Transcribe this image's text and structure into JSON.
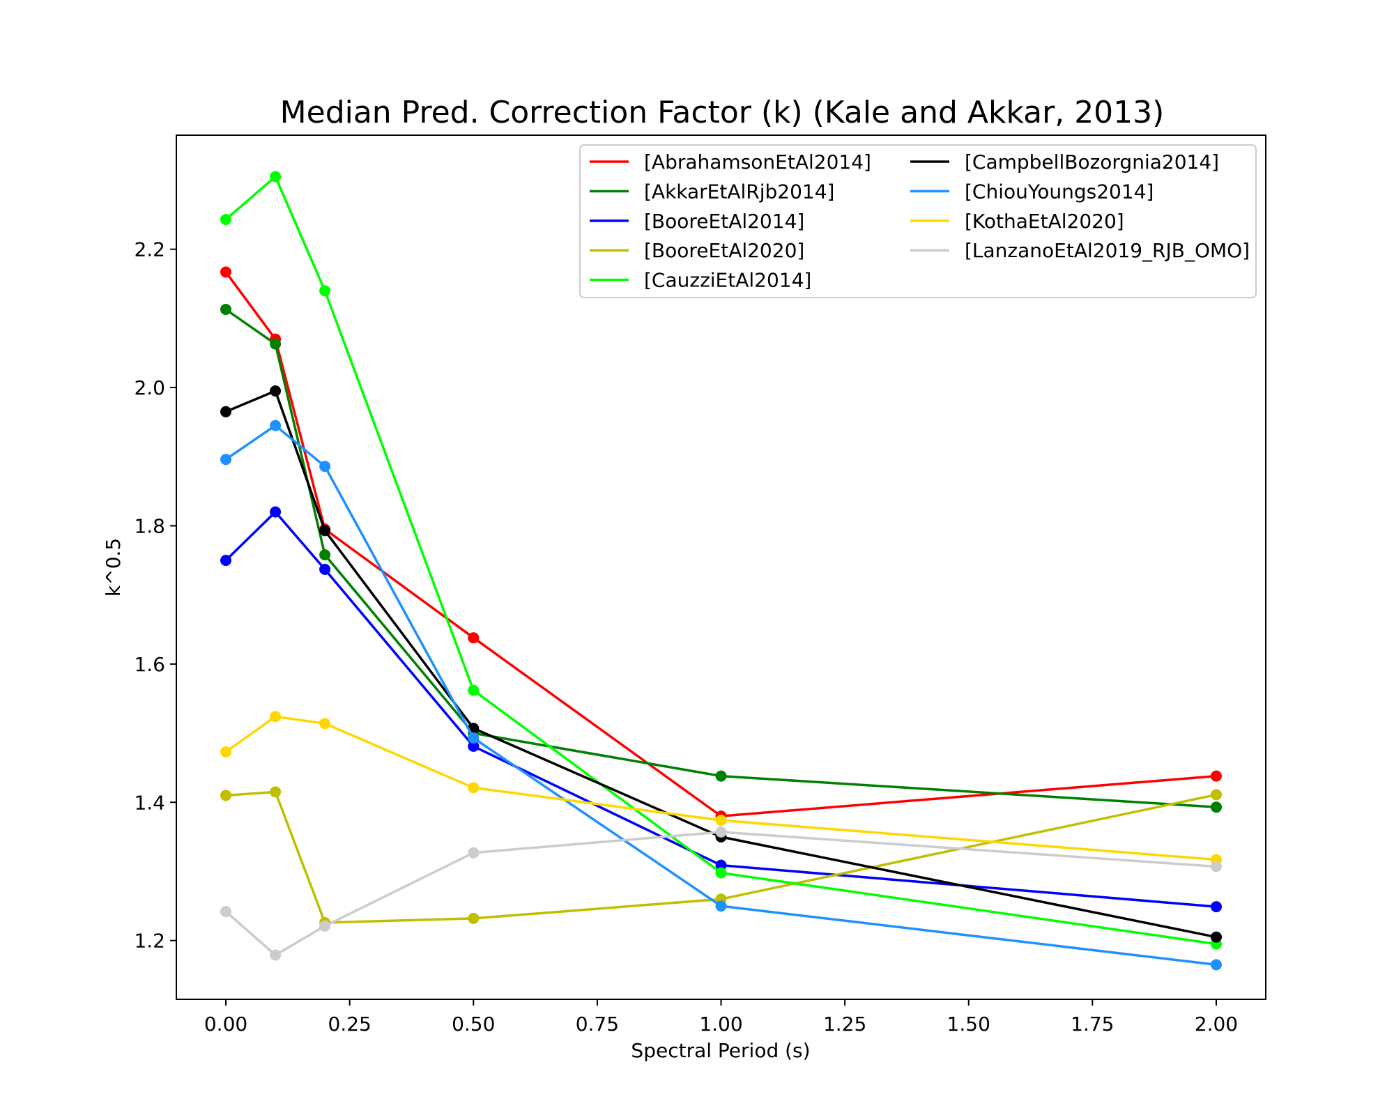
{
  "chart_data": {
    "type": "line",
    "title": "Median Pred. Correction Factor (k) (Kale and Akkar, 2013)",
    "xlabel": "Spectral Period (s)",
    "ylabel": "k^0.5",
    "xlim": [
      -0.1,
      2.1
    ],
    "ylim": [
      1.115,
      2.365
    ],
    "xticks": [
      0.0,
      0.25,
      0.5,
      0.75,
      1.0,
      1.25,
      1.5,
      1.75,
      2.0
    ],
    "xtick_labels": [
      "0.00",
      "0.25",
      "0.50",
      "0.75",
      "1.00",
      "1.25",
      "1.50",
      "1.75",
      "2.00"
    ],
    "yticks": [
      1.2,
      1.4,
      1.6,
      1.8,
      2.0,
      2.2
    ],
    "ytick_labels": [
      "1.2",
      "1.4",
      "1.6",
      "1.8",
      "2.0",
      "2.2"
    ],
    "grid": false,
    "legend_position": "top-right",
    "legend_columns": 2,
    "x": [
      0.0,
      0.1,
      0.2,
      0.5,
      1.0,
      2.0
    ],
    "series": [
      {
        "name": "[AbrahamsonEtAl2014]",
        "color": "#ff0000",
        "values": [
          2.167,
          2.07,
          1.795,
          1.638,
          1.38,
          1.438
        ]
      },
      {
        "name": "[AkkarEtAlRjb2014]",
        "color": "#008000",
        "values": [
          2.113,
          2.063,
          1.758,
          1.5,
          1.438,
          1.393
        ]
      },
      {
        "name": "[BooreEtAl2014]",
        "color": "#0000ff",
        "values": [
          1.75,
          1.82,
          1.737,
          1.481,
          1.309,
          1.249
        ]
      },
      {
        "name": "[BooreEtAl2020]",
        "color": "#bfbf00",
        "values": [
          1.41,
          1.415,
          1.226,
          1.232,
          1.26,
          1.411
        ]
      },
      {
        "name": "[CauzziEtAl2014]",
        "color": "#00ff00",
        "values": [
          2.243,
          2.305,
          2.14,
          1.562,
          1.298,
          1.195
        ]
      },
      {
        "name": "[CampbellBozorgnia2014]",
        "color": "#000000",
        "values": [
          1.965,
          1.995,
          1.793,
          1.507,
          1.35,
          1.205
        ]
      },
      {
        "name": "[ChiouYoungs2014]",
        "color": "#1e90ff",
        "values": [
          1.896,
          1.945,
          1.886,
          1.493,
          1.25,
          1.165
        ]
      },
      {
        "name": "[KothaEtAl2020]",
        "color": "#ffd700",
        "values": [
          1.473,
          1.524,
          1.514,
          1.421,
          1.374,
          1.317
        ]
      },
      {
        "name": "[LanzanoEtAl2019_RJB_OMO]",
        "color": "#cccccc",
        "values": [
          1.242,
          1.179,
          1.221,
          1.327,
          1.357,
          1.307
        ]
      }
    ]
  }
}
